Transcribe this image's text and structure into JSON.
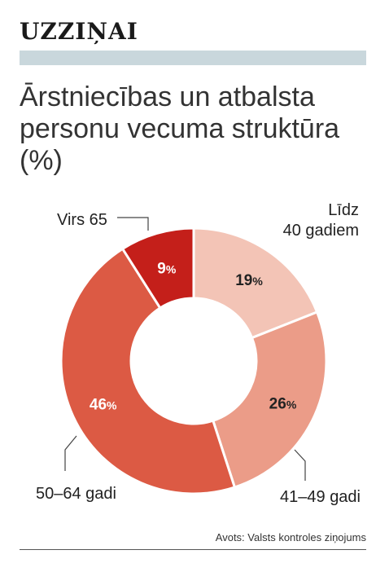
{
  "header": {
    "section_label": "UZZIŅAI"
  },
  "title": "Ārstniecības un atbalsta personu vecuma struktūra (%)",
  "source": "Avots: Valsts kontroles ziņojums",
  "colors": {
    "band": "#c9d7dc",
    "slice_lidz40": "#f3c4b6",
    "slice_41_49": "#eb9c88",
    "slice_50_64": "#dc5a44",
    "slice_virs65": "#c41f1a"
  },
  "chart_data": {
    "type": "pie",
    "variant": "donut",
    "title": "Ārstniecības un atbalsta personu vecuma struktūra (%)",
    "unit": "%",
    "categories": [
      "Līdz 40 gadiem",
      "41–49 gadi",
      "50–64 gadi",
      "Virs 65"
    ],
    "values": [
      19,
      26,
      46,
      9
    ],
    "slices": [
      {
        "label": "Līdz 40 gadiem",
        "label_lines": [
          "Līdz",
          "40 gadiem"
        ],
        "value": 19,
        "color": "#f3c4b6",
        "value_color": "#222222"
      },
      {
        "label": "41–49 gadi",
        "label_lines": [
          "41–49 gadi"
        ],
        "value": 26,
        "color": "#eb9c88",
        "value_color": "#222222"
      },
      {
        "label": "50–64 gadi",
        "label_lines": [
          "50–64 gadi"
        ],
        "value": 46,
        "color": "#dc5a44",
        "value_color": "#ffffff"
      },
      {
        "label": "Virs 65",
        "label_lines": [
          "Virs 65"
        ],
        "value": 9,
        "color": "#c41f1a",
        "value_color": "#ffffff"
      }
    ],
    "start_angle_deg": 0,
    "direction": "clockwise",
    "legend": "none"
  }
}
